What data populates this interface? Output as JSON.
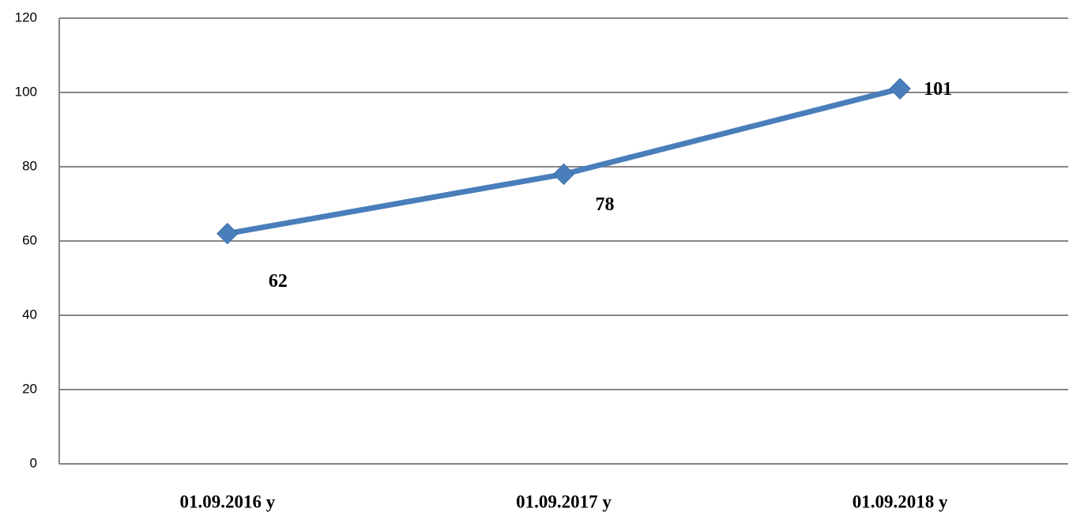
{
  "chart_data": {
    "type": "line",
    "categories": [
      "01.09.2016 y",
      "01.09.2017 y",
      "01.09.2018 y"
    ],
    "series": [
      {
        "name": null,
        "color": "#4a7ebb",
        "values": [
          62,
          78,
          101
        ]
      }
    ],
    "ylim": [
      0,
      120
    ],
    "yticks": [
      0,
      20,
      40,
      60,
      80,
      100,
      120
    ],
    "grid": true
  }
}
